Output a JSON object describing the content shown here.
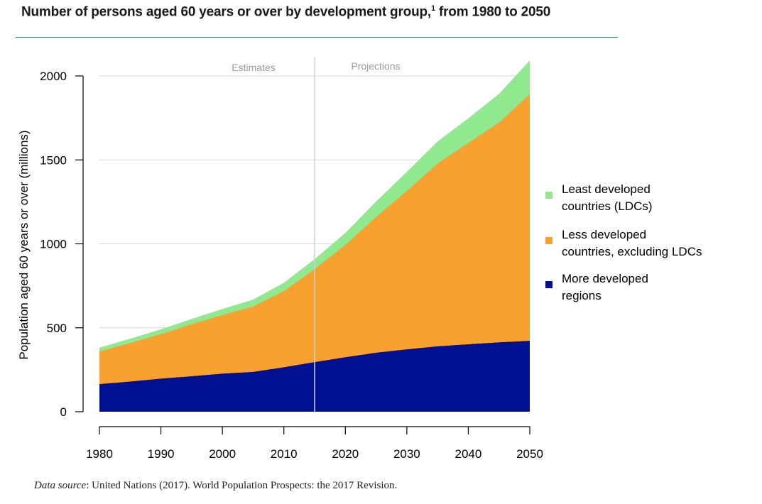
{
  "title": {
    "text": "Number of persons aged 60 years or over by development group,",
    "footnote_mark": "1",
    "suffix": " from 1980 to 2050"
  },
  "source": {
    "label": "Data source",
    "text": ": United Nations (2017). World Population Prospects: the 2017 Revision."
  },
  "chart_data": {
    "type": "area",
    "stacked": true,
    "title": "",
    "xlabel": "",
    "ylabel": "Population aged 60 years or over (millions)",
    "xlim": [
      1980,
      2050
    ],
    "ylim": [
      0,
      2000
    ],
    "x_ticks": [
      1980,
      1990,
      2000,
      2010,
      2020,
      2030,
      2040,
      2050
    ],
    "y_ticks": [
      0,
      500,
      1000,
      1500,
      2000
    ],
    "grid": "horizontal",
    "legend_position": "right",
    "divider": {
      "x": 2015,
      "left_label": "Estimates",
      "right_label": "Projections"
    },
    "x": [
      1980,
      1985,
      1990,
      1995,
      2000,
      2005,
      2010,
      2015,
      2020,
      2025,
      2030,
      2035,
      2040,
      2045,
      2050
    ],
    "series": [
      {
        "name": "More developed regions",
        "color": "#001090",
        "values": [
          165,
          180,
          198,
          212,
          227,
          238,
          265,
          296,
          325,
          352,
          372,
          390,
          402,
          414,
          423
        ]
      },
      {
        "name": "Less developed countries, excluding LDCs",
        "color": "#f9a12e",
        "values": [
          195,
          230,
          265,
          310,
          350,
          390,
          455,
          555,
          670,
          810,
          945,
          1090,
          1200,
          1310,
          1470
        ]
      },
      {
        "name": "Least developed countries (LDCs)",
        "color": "#91e98f",
        "values": [
          22,
          25,
          28,
          31,
          35,
          40,
          48,
          58,
          70,
          90,
          112,
          130,
          145,
          170,
          200
        ]
      }
    ],
    "legend_order": [
      {
        "series": 2,
        "lines": [
          "Least developed",
          "countries (LDCs)"
        ]
      },
      {
        "series": 1,
        "lines": [
          "Less developed",
          "countries, excluding LDCs"
        ]
      },
      {
        "series": 0,
        "lines": [
          "More developed",
          "regions"
        ]
      }
    ]
  }
}
